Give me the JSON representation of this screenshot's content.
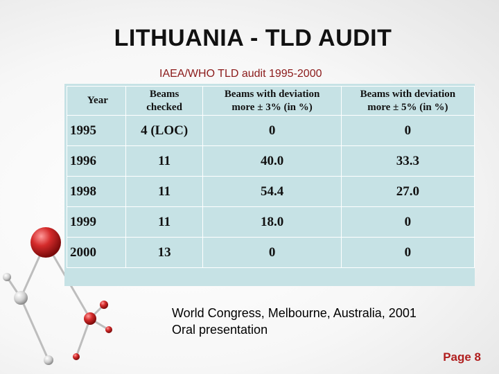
{
  "slide": {
    "title": "LITHUANIA - TLD AUDIT",
    "subtitle": "IAEA/WHO TLD audit 1995-2000",
    "footer_line1": "World Congress, Melbourne, Australia, 2001",
    "footer_line2": "Oral presentation",
    "page_label": "Page 8"
  },
  "table": {
    "headers": {
      "year": "Year",
      "beams_1": "Beams",
      "beams_2": "checked",
      "dev3_1": "Beams with deviation",
      "dev3_2": "more ± 3% (in %)",
      "dev5_1": "Beams with deviation",
      "dev5_2": "more ± 5% (in %)"
    },
    "rows": [
      {
        "year": "1995",
        "beams": "4 (LOC)",
        "dev3": "0",
        "dev5": "0"
      },
      {
        "year": "1996",
        "beams": "11",
        "dev3": "40.0",
        "dev5": "33.3"
      },
      {
        "year": "1998",
        "beams": "11",
        "dev3": "54.4",
        "dev5": "27.0"
      },
      {
        "year": "1999",
        "beams": "11",
        "dev3": "18.0",
        "dev5": "0"
      },
      {
        "year": "2000",
        "beams": "13",
        "dev3": "0",
        "dev5": "0"
      }
    ]
  },
  "colors": {
    "table_bg": "#c6e2e5",
    "sphere_red": "#d42b2b",
    "page_number": "#b01e1e",
    "subtitle": "#8b1a1a"
  }
}
